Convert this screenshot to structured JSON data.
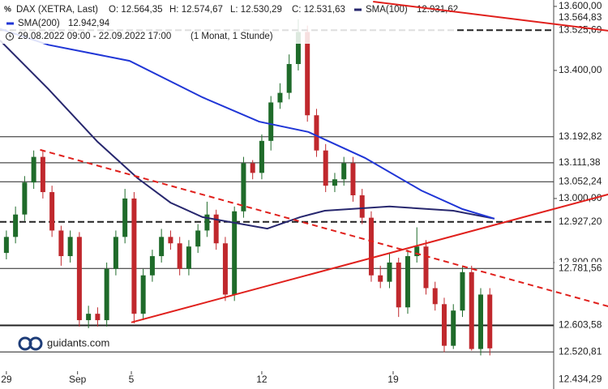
{
  "chart_data": {
    "type": "candlestick",
    "header": {
      "instrument": "DAX (XETRA, Last)",
      "open": "O: 12.564,35",
      "high": "H: 12.574,67",
      "low": "L: 12.530,29",
      "close": "C: 12.531,63",
      "period": "29.08.2022 09:00 - 22.09.2022 17:00",
      "interval": "(1 Monat, 1 Stunde)"
    },
    "watermark": "guidants.com",
    "xlim": [
      -0.7,
      60
    ],
    "xticks": [
      {
        "value": 0,
        "label": "29"
      },
      {
        "value": 7.8,
        "label": "Sep"
      },
      {
        "value": 13.7,
        "label": "5"
      },
      {
        "value": 28,
        "label": "12"
      },
      {
        "value": 42.4,
        "label": "19"
      }
    ],
    "ylim": [
      12405,
      13620
    ],
    "yticks": [
      {
        "value": 13600,
        "label": "13.600,00"
      },
      {
        "value": 13400,
        "label": "13.400,00"
      },
      {
        "value": 13000,
        "label": "13.000,00"
      },
      {
        "value": 12800,
        "label": "12.800,00"
      }
    ],
    "up_color": "#1f6b2a",
    "down_color": "#c0282d",
    "candles": {
      "open": [
        12830,
        12880,
        12950,
        13050,
        13130,
        13020,
        12900,
        12820,
        12880,
        12620,
        12640,
        12620,
        12780,
        12880,
        13000,
        12640,
        12760,
        12820,
        12880,
        12860,
        12780,
        12850,
        12900,
        12950,
        12860,
        12700,
        12960,
        13110,
        13080,
        13180,
        13300,
        13330,
        13420,
        13520,
        13260,
        13150,
        13040,
        13060,
        13110,
        13010,
        12940,
        12760,
        12740,
        12800,
        12660,
        12820,
        12850,
        12720,
        12670,
        12540,
        12650,
        12770,
        12530,
        12700
      ],
      "high": [
        12900,
        12975,
        13070,
        13150,
        13150,
        13040,
        12915,
        12900,
        12895,
        12665,
        12660,
        12800,
        12900,
        13030,
        13020,
        12780,
        12840,
        12905,
        12900,
        12880,
        12870,
        12920,
        12990,
        12965,
        12880,
        12975,
        13130,
        13120,
        13200,
        13320,
        13360,
        13450,
        13560,
        13540,
        13280,
        13170,
        13080,
        13130,
        13130,
        13030,
        12960,
        12790,
        12830,
        12815,
        12840,
        12910,
        12870,
        12740,
        12690,
        12670,
        12790,
        12790,
        12720,
        12720
      ],
      "low": [
        12810,
        12860,
        12930,
        13030,
        13000,
        12880,
        12790,
        12800,
        12600,
        12595,
        12600,
        12600,
        12760,
        12860,
        12610,
        12620,
        12740,
        12800,
        12840,
        12760,
        12760,
        12830,
        12880,
        12840,
        12680,
        12680,
        12940,
        13060,
        13060,
        13150,
        13280,
        13310,
        13400,
        13240,
        13130,
        13020,
        13020,
        13040,
        12990,
        12920,
        12740,
        12720,
        12720,
        12630,
        12640,
        12800,
        12700,
        12650,
        12520,
        12530,
        12630,
        12525,
        12510,
        12510
      ],
      "close": [
        12880,
        12950,
        13050,
        13130,
        13020,
        12900,
        12820,
        12880,
        12620,
        12640,
        12620,
        12780,
        12880,
        13000,
        12640,
        12760,
        12820,
        12880,
        12860,
        12780,
        12850,
        12900,
        12950,
        12860,
        12700,
        12960,
        13110,
        13080,
        13180,
        13300,
        13330,
        13420,
        13520,
        13260,
        13150,
        13040,
        13060,
        13110,
        13010,
        12940,
        12760,
        12740,
        12800,
        12660,
        12820,
        12850,
        12720,
        12670,
        12540,
        12650,
        12770,
        12530,
        12700,
        12532
      ]
    },
    "series": [
      {
        "name": "SMA(100)",
        "last_label": "12.931,62",
        "color": "#27276e",
        "x": [
          -0.7,
          4.6,
          10,
          14.4,
          18,
          21.5,
          28.6,
          32.2,
          34.9,
          42,
          49,
          53.5
        ],
        "values": [
          13494,
          13342,
          13177,
          13063,
          12987,
          12942,
          12906,
          12942,
          12962,
          12975,
          12962,
          12937
        ]
      },
      {
        "name": "SMA(200)",
        "last_label": "12.942,94",
        "color": "#2036d6",
        "x": [
          -0.7,
          4.6,
          13.5,
          21.5,
          27.7,
          33.1,
          39.3,
          45.5,
          50,
          53.5
        ],
        "values": [
          13530,
          13480,
          13430,
          13316,
          13240,
          13208,
          13127,
          13025,
          12967,
          12937
        ]
      }
    ],
    "trendlines": [
      {
        "color": "#e0201c",
        "dashed": false,
        "x": [
          13.7,
          66
        ],
        "y": [
          12613,
          13013
        ]
      },
      {
        "color": "#e0201c",
        "dashed": true,
        "x": [
          3.7,
          66
        ],
        "y": [
          13152,
          12663
        ]
      },
      {
        "color": "#e0201c",
        "dashed": false,
        "x": [
          40.2,
          66
        ],
        "y": [
          13615,
          13524
        ]
      }
    ],
    "levels": [
      {
        "value": 13564.83,
        "label": "13.564,83",
        "style": "none"
      },
      {
        "value": 13525.69,
        "label": "13.525,69",
        "style": "dashed"
      },
      {
        "value": 13192.82,
        "label": "13.192,82",
        "style": "solid"
      },
      {
        "value": 13111.38,
        "label": "13.111,38",
        "style": "solid"
      },
      {
        "value": 13052.24,
        "label": "13.052,24",
        "style": "solid"
      },
      {
        "value": 12927.2,
        "label": "12.927,20",
        "style": "dashed"
      },
      {
        "value": 12781.56,
        "label": "12.781,56",
        "style": "solid"
      },
      {
        "value": 12603.58,
        "label": "12.603,58",
        "style": "bold"
      },
      {
        "value": 12520.81,
        "label": "12.520,81",
        "style": "solid"
      },
      {
        "value": 12434.29,
        "label": "12.434,29",
        "style": "none"
      }
    ]
  }
}
